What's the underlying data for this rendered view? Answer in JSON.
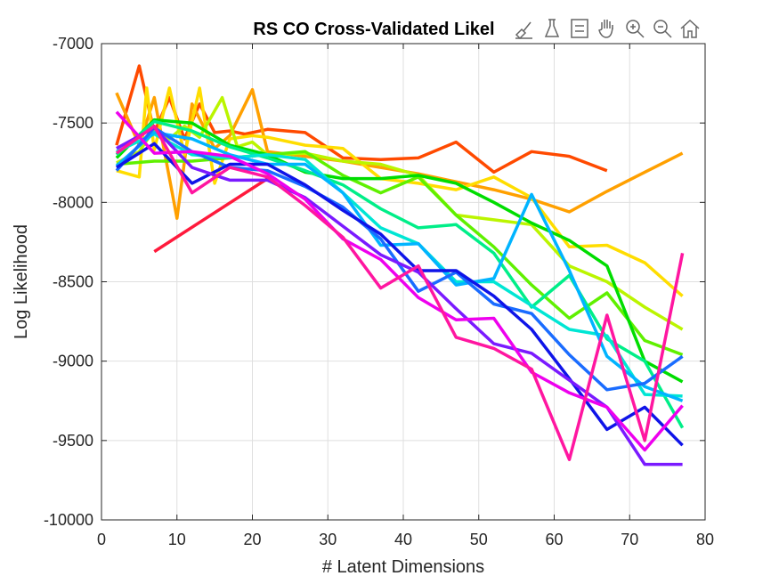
{
  "toolbar": {
    "buttons": [
      {
        "name": "brush-icon"
      },
      {
        "name": "data-tips-icon"
      },
      {
        "name": "legend-icon"
      },
      {
        "name": "pan-icon"
      },
      {
        "name": "zoom-in-icon"
      },
      {
        "name": "zoom-out-icon"
      },
      {
        "name": "home-icon"
      }
    ]
  },
  "chart_data": {
    "type": "line",
    "title": "RS CO Cross-Validated Likel",
    "xlabel": "# Latent Dimensions",
    "ylabel": "Log Likelihood",
    "xlim": [
      0,
      80
    ],
    "ylim": [
      -10000,
      -7000
    ],
    "xticks": [
      0,
      10,
      20,
      30,
      40,
      50,
      60,
      70,
      80
    ],
    "yticks": [
      -10000,
      -9500,
      -9000,
      -8500,
      -8000,
      -7500,
      -7000
    ],
    "grid": true,
    "series": [
      {
        "color": "#ff1a3c",
        "x": [
          7,
          22
        ],
        "y": [
          -8310,
          -7850
        ]
      },
      {
        "color": "#ff4a00",
        "x": [
          2,
          5,
          7,
          9,
          11,
          13,
          15,
          17,
          19,
          22,
          27,
          32,
          37,
          42,
          47,
          52,
          57,
          62,
          67
        ],
        "y": [
          -7640,
          -7140,
          -7560,
          -7340,
          -7600,
          -7380,
          -7560,
          -7550,
          -7570,
          -7540,
          -7560,
          -7720,
          -7730,
          -7720,
          -7620,
          -7810,
          -7680,
          -7710,
          -7800
        ]
      },
      {
        "color": "#ffa000",
        "x": [
          2,
          5,
          7,
          10,
          12,
          15,
          17,
          20,
          22,
          27,
          32,
          37,
          42,
          47,
          52,
          57,
          62,
          67,
          72,
          77
        ],
        "y": [
          -7310,
          -7640,
          -7340,
          -8100,
          -7380,
          -7660,
          -7580,
          -7290,
          -7680,
          -7710,
          -7740,
          -7780,
          -7820,
          -7870,
          -7920,
          -7980,
          -8060,
          -7930,
          -7810,
          -7690
        ]
      },
      {
        "color": "#ffdd00",
        "x": [
          2,
          5,
          6,
          7,
          9,
          11,
          13,
          15,
          17,
          20,
          22,
          27,
          32,
          37,
          42,
          47,
          52,
          57,
          62,
          67,
          72,
          77
        ],
        "y": [
          -7800,
          -7840,
          -7280,
          -7670,
          -7280,
          -7700,
          -7280,
          -7880,
          -7600,
          -7580,
          -7590,
          -7640,
          -7660,
          -7850,
          -7880,
          -7920,
          -7840,
          -7970,
          -8280,
          -8270,
          -8380,
          -8590
        ]
      },
      {
        "color": "#bbf500",
        "x": [
          2,
          5,
          7,
          9,
          11,
          13,
          16,
          18,
          20,
          22,
          27,
          32,
          37,
          42,
          47,
          52,
          57,
          62,
          67,
          72,
          77
        ],
        "y": [
          -7750,
          -7680,
          -7540,
          -7600,
          -7520,
          -7590,
          -7340,
          -7650,
          -7620,
          -7700,
          -7690,
          -7740,
          -7760,
          -7830,
          -8080,
          -8110,
          -8140,
          -8400,
          -8500,
          -8660,
          -8800
        ]
      },
      {
        "color": "#60f000",
        "x": [
          2,
          7,
          12,
          17,
          22,
          27,
          32,
          37,
          42,
          47,
          52,
          57,
          62,
          67,
          72,
          77
        ],
        "y": [
          -7760,
          -7740,
          -7740,
          -7720,
          -7700,
          -7680,
          -7830,
          -7940,
          -7840,
          -8080,
          -8280,
          -8520,
          -8730,
          -8570,
          -8870,
          -8960
        ]
      },
      {
        "color": "#00dd00",
        "x": [
          2,
          7,
          12,
          17,
          22,
          27,
          32,
          37,
          42,
          47,
          52,
          57,
          62,
          67,
          72,
          77
        ],
        "y": [
          -7720,
          -7480,
          -7500,
          -7640,
          -7700,
          -7810,
          -7850,
          -7850,
          -7830,
          -7880,
          -8000,
          -8130,
          -8240,
          -8400,
          -9000,
          -9130
        ]
      },
      {
        "color": "#00ee88",
        "x": [
          2,
          7,
          12,
          17,
          22,
          27,
          32,
          37,
          42,
          47,
          52,
          57,
          62,
          67,
          72,
          77
        ],
        "y": [
          -7700,
          -7490,
          -7550,
          -7650,
          -7720,
          -7800,
          -7890,
          -8040,
          -8160,
          -8140,
          -8320,
          -8660,
          -8460,
          -8860,
          -9000,
          -9420
        ]
      },
      {
        "color": "#00e6d4",
        "x": [
          2,
          7,
          12,
          17,
          22,
          27,
          32,
          37,
          42,
          47,
          52,
          57,
          62,
          67,
          72,
          77
        ],
        "y": [
          -7680,
          -7570,
          -7700,
          -7720,
          -7700,
          -7730,
          -7940,
          -8160,
          -8260,
          -8500,
          -8500,
          -8650,
          -8800,
          -8840,
          -9210,
          -9220
        ]
      },
      {
        "color": "#00b4ff",
        "x": [
          2,
          7,
          12,
          17,
          22,
          27,
          32,
          37,
          42,
          47,
          52,
          57,
          62,
          67,
          72,
          77
        ],
        "y": [
          -7770,
          -7560,
          -7600,
          -7700,
          -7760,
          -7760,
          -7940,
          -8270,
          -8260,
          -8520,
          -8480,
          -7950,
          -8430,
          -8970,
          -9160,
          -9250
        ]
      },
      {
        "color": "#1a6cff",
        "x": [
          2,
          7,
          12,
          17,
          22,
          27,
          32,
          37,
          42,
          47,
          52,
          57,
          62,
          67,
          72,
          77
        ],
        "y": [
          -7800,
          -7530,
          -7680,
          -7780,
          -7800,
          -7900,
          -8030,
          -8230,
          -8560,
          -8440,
          -8640,
          -8700,
          -8960,
          -9180,
          -9140,
          -8970
        ]
      },
      {
        "color": "#0f14e8",
        "x": [
          2,
          7,
          12,
          17,
          22,
          27,
          32,
          37,
          42,
          47,
          52,
          57,
          62,
          67,
          72,
          77
        ],
        "y": [
          -7780,
          -7630,
          -7880,
          -7760,
          -7760,
          -7890,
          -8050,
          -8200,
          -8430,
          -8430,
          -8590,
          -8800,
          -9110,
          -9430,
          -9290,
          -9530
        ]
      },
      {
        "color": "#7a1aff",
        "x": [
          2,
          7,
          12,
          17,
          22,
          27,
          32,
          37,
          42,
          47,
          52,
          57,
          62,
          67,
          72,
          77
        ],
        "y": [
          -7660,
          -7530,
          -7780,
          -7860,
          -7860,
          -7970,
          -8150,
          -8330,
          -8440,
          -8670,
          -8890,
          -8950,
          -9120,
          -9290,
          -9650,
          -9650
        ]
      },
      {
        "color": "#ee00ee",
        "x": [
          2,
          7,
          12,
          17,
          22,
          27,
          32,
          37,
          42,
          47,
          52,
          57,
          62,
          67,
          72,
          77
        ],
        "y": [
          -7430,
          -7690,
          -7680,
          -7710,
          -7820,
          -7980,
          -8230,
          -8360,
          -8600,
          -8740,
          -8730,
          -9070,
          -9200,
          -9290,
          -9560,
          -9280
        ]
      },
      {
        "color": "#ff16a0",
        "x": [
          2,
          7,
          12,
          17,
          22,
          27,
          32,
          37,
          42,
          47,
          52,
          57,
          62,
          67,
          72,
          77
        ],
        "y": [
          -7690,
          -7520,
          -7940,
          -7780,
          -7840,
          -8020,
          -8220,
          -8540,
          -8400,
          -8850,
          -8920,
          -9050,
          -9620,
          -8710,
          -9500,
          -8320
        ]
      }
    ]
  }
}
